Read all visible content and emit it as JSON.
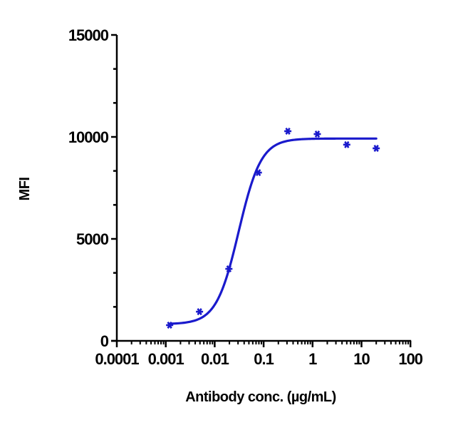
{
  "chart_data": {
    "type": "scatter",
    "title": "",
    "xlabel": "Antibody conc. (µg/mL)",
    "ylabel": "MFI",
    "xscale": "log",
    "xlim": [
      0.0001,
      100
    ],
    "ylim": [
      0,
      15000
    ],
    "x_ticks": [
      "0.0001",
      "0.001",
      "0.01",
      "0.1",
      "1",
      "10",
      "100"
    ],
    "y_ticks": [
      "0",
      "5000",
      "10000",
      "15000"
    ],
    "grid": false,
    "legend": null,
    "series": [
      {
        "name": "MFI",
        "color": "#1a1acc",
        "marker": "asterisk",
        "x": [
          0.0012,
          0.0049,
          0.0195,
          0.078,
          0.3125,
          1.25,
          5,
          20
        ],
        "y": [
          770,
          1430,
          3530,
          8250,
          10280,
          10140,
          9620,
          9440
        ]
      }
    ],
    "fit": {
      "type": "4PL sigmoid",
      "color": "#1a1acc",
      "bottom": 820,
      "top": 9920,
      "ec50": 0.031,
      "hill": 1.9,
      "x_range": [
        0.0012,
        20
      ]
    }
  }
}
